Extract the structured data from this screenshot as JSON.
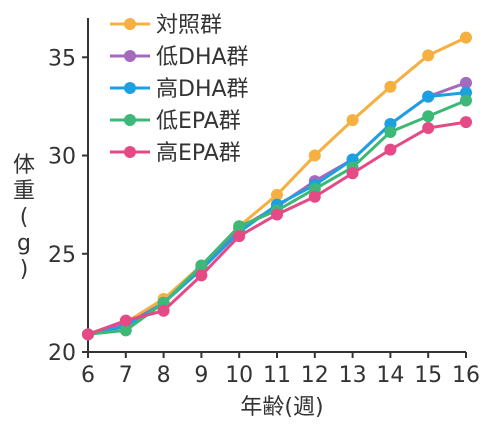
{
  "chart_data": {
    "type": "line",
    "xlabel": "年齢(週)",
    "ylabel": "体重(g)",
    "x": [
      6,
      7,
      8,
      9,
      10,
      11,
      12,
      13,
      14,
      15,
      16
    ],
    "xlim": [
      6,
      16
    ],
    "ylim": [
      20,
      37
    ],
    "y_ticks": [
      20,
      25,
      30,
      35
    ],
    "grid": false,
    "legend_position": "top-left",
    "series": [
      {
        "name": "対照群",
        "color": "#f5b041",
        "values": [
          20.9,
          21.5,
          22.7,
          24.4,
          26.4,
          28.0,
          30.0,
          31.8,
          33.5,
          35.1,
          36.0
        ]
      },
      {
        "name": "低DHA群",
        "color": "#a569bd",
        "values": [
          20.9,
          21.4,
          22.5,
          24.3,
          26.3,
          27.4,
          28.7,
          29.8,
          31.6,
          33.0,
          33.7
        ]
      },
      {
        "name": "高DHA群",
        "color": "#1ba1e2",
        "values": [
          20.9,
          21.3,
          22.5,
          24.2,
          26.1,
          27.5,
          28.5,
          29.8,
          31.6,
          33.0,
          33.2
        ]
      },
      {
        "name": "低EPA群",
        "color": "#3db876",
        "values": [
          20.9,
          21.1,
          22.5,
          24.4,
          26.4,
          27.2,
          28.3,
          29.4,
          31.2,
          32.0,
          32.8
        ]
      },
      {
        "name": "高EPA群",
        "color": "#e64a86",
        "values": [
          20.9,
          21.6,
          22.1,
          23.9,
          25.9,
          27.0,
          27.9,
          29.1,
          30.3,
          31.4,
          31.7
        ]
      }
    ]
  }
}
